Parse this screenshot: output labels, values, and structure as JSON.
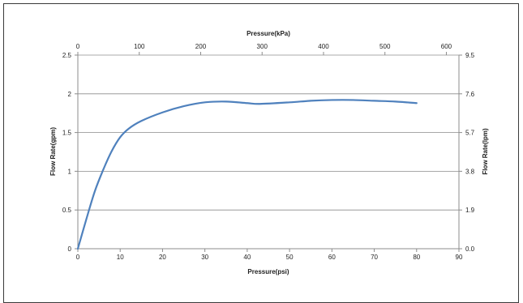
{
  "chart_data": {
    "type": "line",
    "title": "",
    "xlabel": "Pressure(psi)",
    "ylabel": "Flow Rate(gpm)",
    "x2label": "Pressure(kPa)",
    "y2label": "Flow Rate(lpm)",
    "xlim": [
      0,
      90
    ],
    "ylim": [
      0,
      2.5
    ],
    "x2lim": [
      0,
      620.5
    ],
    "y2lim": [
      0.0,
      9.5
    ],
    "x_ticks": [
      0,
      10,
      20,
      30,
      40,
      50,
      60,
      70,
      80,
      90
    ],
    "y_ticks": [
      0,
      0.5,
      1,
      1.5,
      2,
      2.5
    ],
    "y_tick_labels": [
      "0",
      "0.5",
      "1",
      "1.5",
      "2",
      "2.5"
    ],
    "x2_ticks": [
      0,
      100,
      200,
      300,
      400,
      500,
      600
    ],
    "y2_ticks": [
      0.0,
      1.9,
      3.8,
      5.7,
      7.6,
      9.5
    ],
    "y2_tick_labels": [
      "0.0",
      "1.9",
      "3.8",
      "5.7",
      "7.6",
      "9.5"
    ],
    "grid": "horizontal",
    "legend": "none",
    "series": [
      {
        "color": "#4f81bd",
        "x": [
          0,
          2,
          4,
          6,
          8,
          10,
          12,
          15,
          20,
          25,
          30,
          35,
          40,
          43,
          50,
          55,
          60,
          65,
          70,
          75,
          80
        ],
        "y": [
          0,
          0.38,
          0.74,
          1.02,
          1.26,
          1.44,
          1.55,
          1.65,
          1.76,
          1.84,
          1.89,
          1.9,
          1.88,
          1.87,
          1.89,
          1.91,
          1.92,
          1.92,
          1.91,
          1.9,
          1.88
        ]
      }
    ]
  }
}
